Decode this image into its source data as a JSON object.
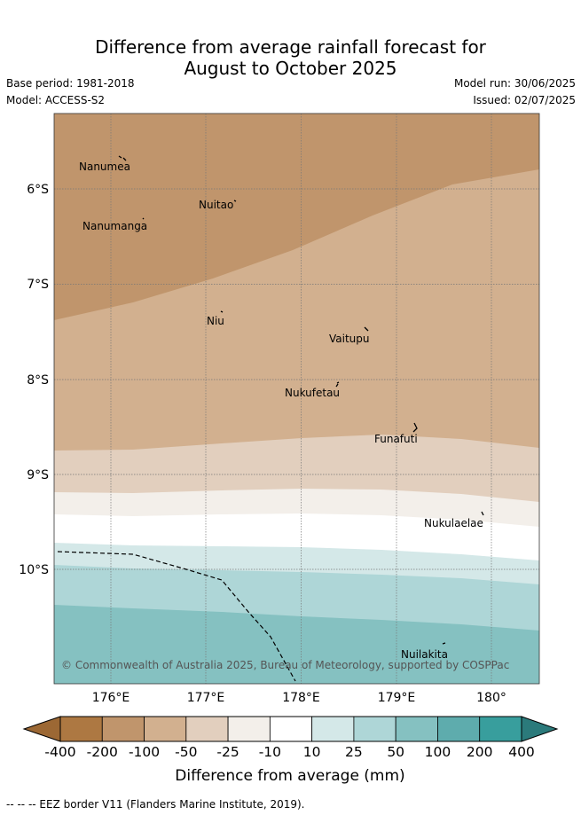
{
  "title": {
    "line1": "Difference from average rainfall forecast for",
    "line2": "August to October 2025"
  },
  "meta": {
    "base_period": "Base period: 1981-2018",
    "model": "Model: ACCESS-S2",
    "model_run": "Model run: 30/06/2025",
    "issued": "Issued: 02/07/2025"
  },
  "map": {
    "lon_range": [
      175.5,
      180.5
    ],
    "lat_range": [
      -5.2,
      -11.2
    ],
    "lon_ticks": [
      "176°E",
      "177°E",
      "178°E",
      "179°E",
      "180°"
    ],
    "lat_ticks": [
      "6°S",
      "7°S",
      "8°S",
      "9°S",
      "10°S"
    ],
    "copyright": "© Commonwealth of Australia 2025, Bureau of Meteorology, supported by COSPPac",
    "places": [
      "Nanumea",
      "Nuitao",
      "Nanumanga",
      "Niu",
      "Vaitupu",
      "Nukufetau",
      "Funafuti",
      "Nukulaelae",
      "Nuilakita"
    ]
  },
  "colorbar": {
    "labels": [
      "-400",
      "-200",
      "-100",
      "-50",
      "-25",
      "-10",
      "10",
      "25",
      "50",
      "100",
      "200",
      "400"
    ],
    "colors": [
      "#ad7842",
      "#c0956c",
      "#d2b08f",
      "#e2cfbe",
      "#f3efea",
      "#ffffff",
      "#d4e8e8",
      "#aed6d7",
      "#85c1c1",
      "#5eacad",
      "#389e9d"
    ],
    "under_color": "#9c6834",
    "over_color": "#2b7a7b",
    "title": "Difference from average (mm)"
  },
  "footer": "-- -- -- EEZ border V11 (Flanders Marine Institute, 2019)."
}
